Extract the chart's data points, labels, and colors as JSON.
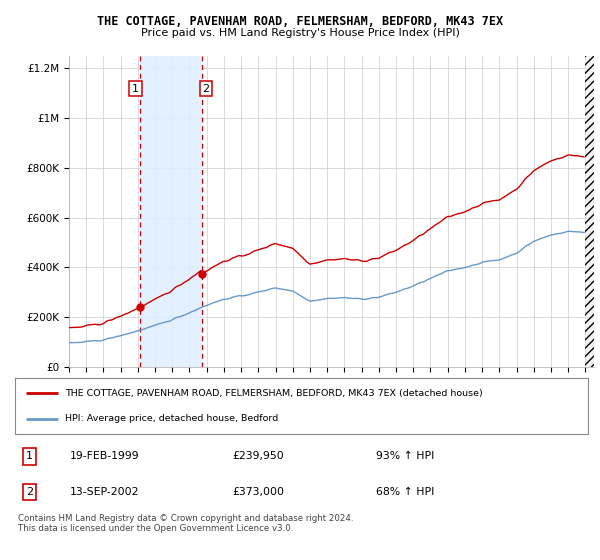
{
  "title_line1": "THE COTTAGE, PAVENHAM ROAD, FELMERSHAM, BEDFORD, MK43 7EX",
  "title_line2": "Price paid vs. HM Land Registry's House Price Index (HPI)",
  "legend_line1": "THE COTTAGE, PAVENHAM ROAD, FELMERSHAM, BEDFORD, MK43 7EX (detached house)",
  "legend_line2": "HPI: Average price, detached house, Bedford",
  "footnote": "Contains HM Land Registry data © Crown copyright and database right 2024.\nThis data is licensed under the Open Government Licence v3.0.",
  "transaction1_date": "19-FEB-1999",
  "transaction1_price": "£239,950",
  "transaction1_hpi": "93% ↑ HPI",
  "transaction2_date": "13-SEP-2002",
  "transaction2_price": "£373,000",
  "transaction2_hpi": "68% ↑ HPI",
  "purchase1_year": 1999.12,
  "purchase1_price": 239950,
  "purchase2_year": 2002.7,
  "purchase2_price": 373000,
  "red_color": "#cc0000",
  "blue_color": "#6699cc",
  "highlight_color": "#ddeeff",
  "ylim_max": 1250000,
  "xlim_min": 1995.0,
  "xlim_max": 2025.5
}
